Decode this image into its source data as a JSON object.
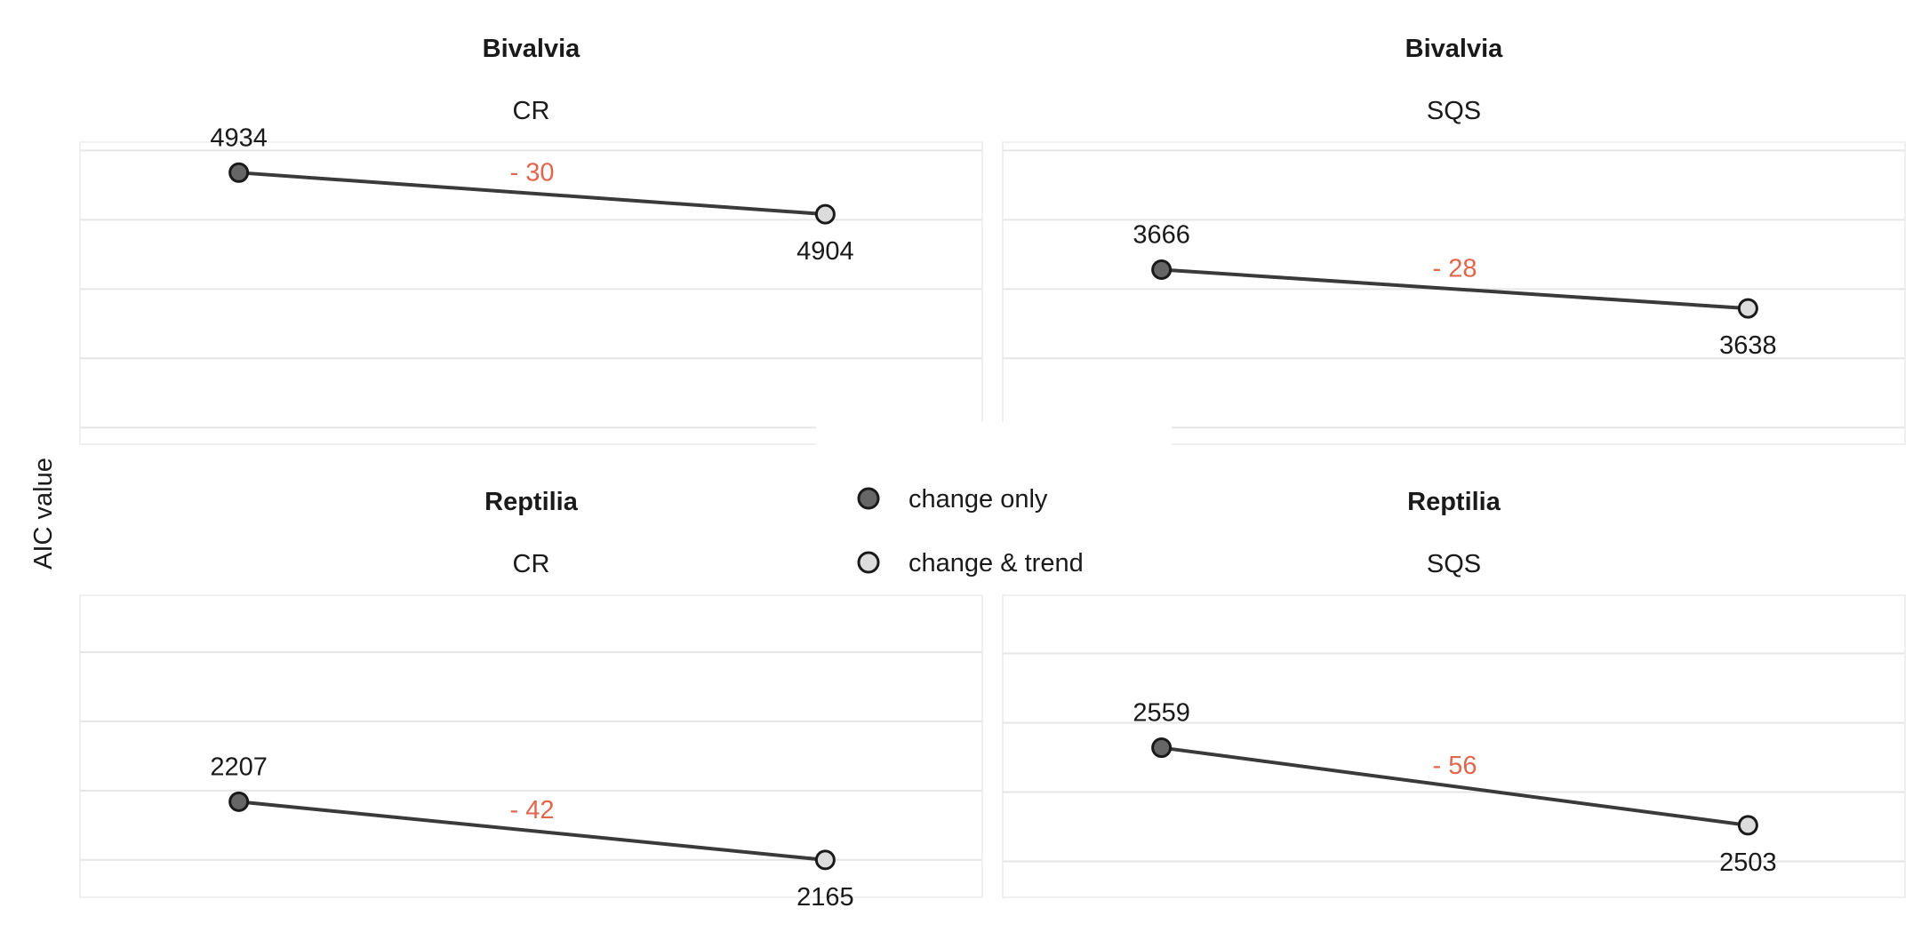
{
  "colors": {
    "change_only": "#666666",
    "change_and_trend": "#dcdcdc",
    "point_outline": "#1a1a1a",
    "line": "#3a3a3a",
    "difference_text": "#e0664d",
    "grid": "#e6e6e6"
  },
  "chart_data": {
    "type": "line",
    "ylabel": "AIC value",
    "legend": {
      "placement": "center",
      "entries": [
        {
          "key": "change_only",
          "label": "change only",
          "color": "#666666"
        },
        {
          "key": "change_and_trend",
          "label": "change & trend",
          "color": "#dcdcdc"
        }
      ]
    },
    "grid": true,
    "panels": [
      {
        "title": "Bivalvia",
        "subtitle": "CR",
        "ylim": [
          4738,
          4956
        ],
        "yticks": [
          4750,
          4800,
          4850,
          4900,
          4950
        ],
        "change_only": 4934,
        "change_and_trend": 4904,
        "difference": "- 30"
      },
      {
        "title": "Bivalvia",
        "subtitle": "SQS",
        "ylim": [
          3540,
          3758
        ],
        "yticks": [
          3552,
          3602,
          3652,
          3702,
          3752
        ],
        "change_only": 3666,
        "change_and_trend": 3638,
        "difference": "- 28"
      },
      {
        "title": "Reptilia",
        "subtitle": "CR",
        "ylim": [
          2138,
          2356
        ],
        "yticks": [
          2165,
          2215,
          2265,
          2315
        ],
        "change_only": 2207,
        "change_and_trend": 2165,
        "difference": "- 42"
      },
      {
        "title": "Reptilia",
        "subtitle": "SQS",
        "ylim": [
          2451,
          2669
        ],
        "yticks": [
          2477,
          2527,
          2577,
          2627
        ],
        "change_only": 2559,
        "change_and_trend": 2503,
        "difference": "- 56"
      }
    ]
  }
}
